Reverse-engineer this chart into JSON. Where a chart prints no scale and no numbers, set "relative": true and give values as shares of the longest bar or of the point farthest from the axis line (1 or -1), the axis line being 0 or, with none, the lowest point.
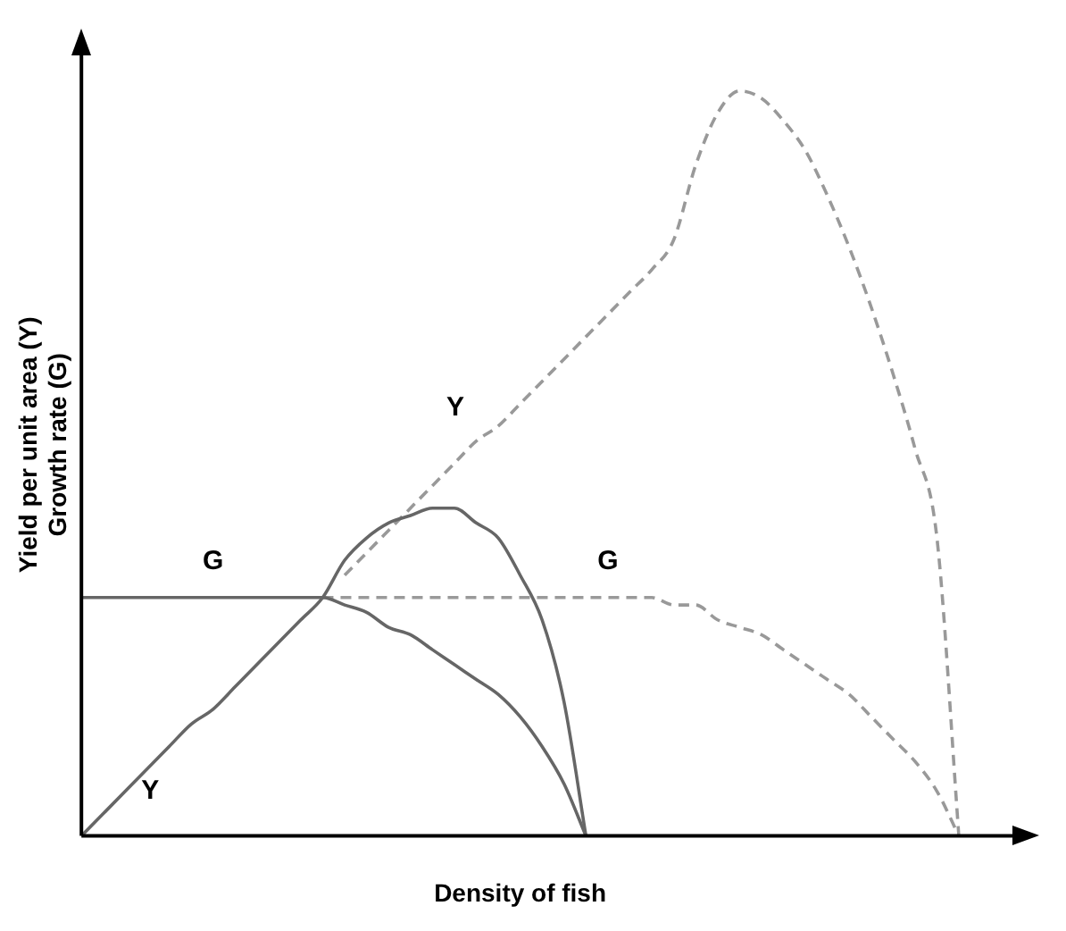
{
  "chart_data": {
    "type": "line",
    "relative": true,
    "xlabel": "Density of fish",
    "ylabel": "Yield per unit area (Y)\nGrowth rate (G)",
    "grid": false,
    "legend": false,
    "marker": "none",
    "categories": [
      null,
      null,
      null,
      null,
      null,
      null,
      null,
      null,
      null,
      null,
      null,
      null,
      null,
      null,
      null,
      null,
      null,
      null,
      null,
      null,
      null,
      null,
      null,
      null,
      null,
      null,
      null,
      null,
      null,
      null,
      null,
      null,
      null,
      null,
      null,
      null,
      null,
      null,
      null,
      null,
      null
    ],
    "series": [
      {
        "name": "Y",
        "color": "#666666",
        "line_style": "solid",
        "values": [
          0,
          0.03,
          0.06,
          0.09,
          0.12,
          0.15,
          0.17,
          0.2,
          0.23,
          0.26,
          0.29,
          0.32,
          0.37,
          0.4,
          0.42,
          0.43,
          0.44,
          0.44,
          0.42,
          0.4,
          0.35,
          0.29,
          0.18,
          0,
          null,
          null,
          null,
          null,
          null,
          null,
          null,
          null,
          null,
          null,
          null,
          null,
          null,
          null,
          null,
          null,
          null
        ]
      },
      {
        "name": "G",
        "color": "#666666",
        "line_style": "solid",
        "values": [
          0.32,
          0.32,
          0.32,
          0.32,
          0.32,
          0.32,
          0.32,
          0.32,
          0.32,
          0.32,
          0.32,
          0.32,
          0.31,
          0.3,
          0.28,
          0.27,
          0.25,
          0.23,
          0.21,
          0.19,
          0.16,
          0.12,
          0.07,
          0,
          null,
          null,
          null,
          null,
          null,
          null,
          null,
          null,
          null,
          null,
          null,
          null,
          null,
          null,
          null,
          null,
          null
        ]
      },
      {
        "name": "Y",
        "color": "#999999",
        "line_style": "dashed",
        "values": [
          null,
          null,
          null,
          null,
          null,
          null,
          null,
          null,
          null,
          null,
          null,
          null,
          0.35,
          0.38,
          0.41,
          0.44,
          0.47,
          0.5,
          0.53,
          0.55,
          0.58,
          0.61,
          0.64,
          0.67,
          0.7,
          0.73,
          0.76,
          0.8,
          0.9,
          0.97,
          1,
          0.99,
          0.96,
          0.92,
          0.86,
          0.79,
          0.71,
          0.62,
          0.52,
          0.4,
          0
        ]
      },
      {
        "name": "G",
        "color": "#999999",
        "line_style": "dashed",
        "values": [
          null,
          null,
          null,
          null,
          null,
          null,
          null,
          null,
          null,
          null,
          null,
          0.32,
          0.32,
          0.32,
          0.32,
          0.32,
          0.32,
          0.32,
          0.32,
          0.32,
          0.32,
          0.32,
          0.32,
          0.32,
          0.32,
          0.32,
          0.32,
          0.31,
          0.31,
          0.29,
          0.28,
          0.27,
          0.25,
          0.23,
          0.21,
          0.19,
          0.16,
          0.13,
          0.1,
          0.06,
          0
        ]
      }
    ]
  }
}
